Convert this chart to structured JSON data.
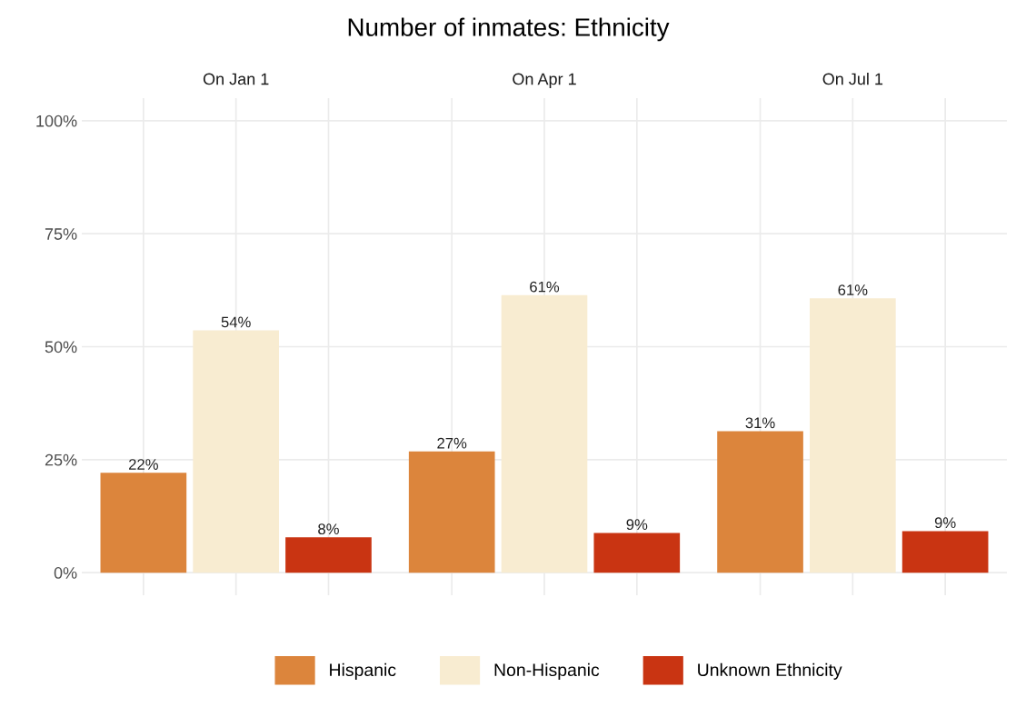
{
  "chart_data": {
    "type": "bar",
    "title": "Number of inmates: Ethnicity",
    "categories": [
      "On Jan 1",
      "On Apr 1",
      "On Jul 1"
    ],
    "series": [
      {
        "name": "Hispanic",
        "color": "#dc853c",
        "values": [
          22.1,
          26.8,
          31.3
        ],
        "value_labels": [
          "22%",
          "27%",
          "31%"
        ]
      },
      {
        "name": "Non-Hispanic",
        "color": "#f8ecd1",
        "values": [
          53.6,
          61.4,
          60.7
        ],
        "value_labels": [
          "54%",
          "61%",
          "61%"
        ]
      },
      {
        "name": "Unknown Ethnicity",
        "color": "#c93412",
        "values": [
          7.8,
          8.8,
          9.2
        ],
        "value_labels": [
          "8%",
          "9%",
          "9%"
        ]
      }
    ],
    "ylim": [
      -5,
      105
    ],
    "yticks": [
      {
        "value": 0,
        "label": "0%"
      },
      {
        "value": 25,
        "label": "25%"
      },
      {
        "value": 50,
        "label": "50%"
      },
      {
        "value": 75,
        "label": "75%"
      },
      {
        "value": 100,
        "label": "100%"
      }
    ],
    "grid": true,
    "legend": "bottom"
  }
}
